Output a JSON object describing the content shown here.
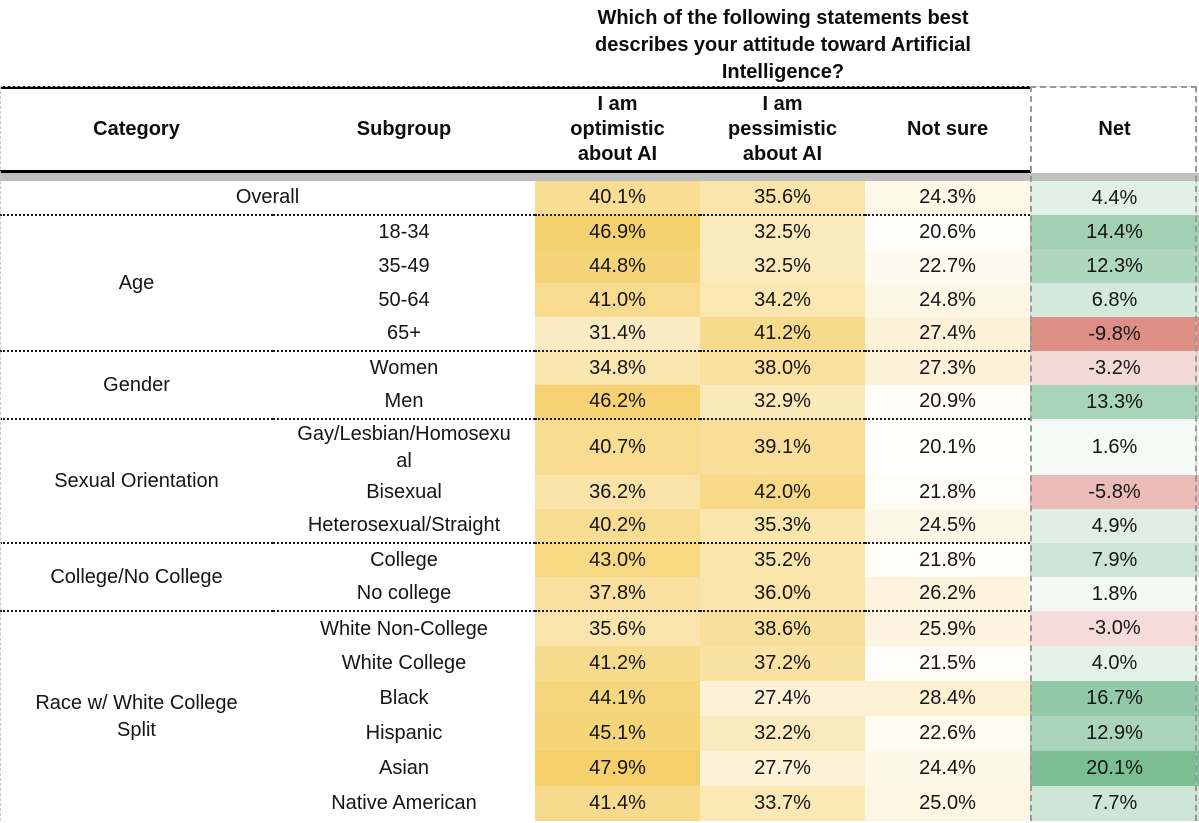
{
  "title": "Which of the following statements best\ndescribes your attitude toward Artificial\nIntelligence?",
  "columns": [
    {
      "label": "Category"
    },
    {
      "label": "Subgroup"
    },
    {
      "label": "I am\noptimistic\nabout AI"
    },
    {
      "label": "I am\npessimistic\nabout AI"
    },
    {
      "label": "Not sure"
    },
    {
      "label": "Net"
    }
  ],
  "colors": {
    "value_low": "#FFFFFF",
    "value_high": "#F5CF68",
    "net_positive": "#7CBE94",
    "net_negative": "#DD8E85",
    "gray_bar": "#BFBFBF",
    "dotted_divider": "#1a1a1a",
    "net_outline": "#9A9A9A",
    "outer_outline": "#C8C8C8",
    "text": "#151515"
  },
  "chart_data": {
    "type": "table",
    "title": "Which of the following statements best describes your attitude toward Artificial Intelligence?",
    "columns": [
      "Category",
      "Subgroup",
      "I am optimistic about AI",
      "I am pessimistic about AI",
      "Not sure",
      "Net"
    ],
    "value_scale": {
      "min": 20,
      "max": 48
    },
    "net_scale": {
      "min": -9.8,
      "max": 20.1
    },
    "groups": [
      {
        "category": "",
        "merged": true,
        "rows": [
          {
            "subgroup": "Overall",
            "optimistic": 40.1,
            "pessimistic": 35.6,
            "not_sure": 24.3,
            "net": 4.4
          }
        ]
      },
      {
        "category": "Age",
        "rows": [
          {
            "subgroup": "18-34",
            "optimistic": 46.9,
            "pessimistic": 32.5,
            "not_sure": 20.6,
            "net": 14.4
          },
          {
            "subgroup": "35-49",
            "optimistic": 44.8,
            "pessimistic": 32.5,
            "not_sure": 22.7,
            "net": 12.3
          },
          {
            "subgroup": "50-64",
            "optimistic": 41.0,
            "pessimistic": 34.2,
            "not_sure": 24.8,
            "net": 6.8
          },
          {
            "subgroup": "65+",
            "optimistic": 31.4,
            "pessimistic": 41.2,
            "not_sure": 27.4,
            "net": -9.8
          }
        ]
      },
      {
        "category": "Gender",
        "rows": [
          {
            "subgroup": "Women",
            "optimistic": 34.8,
            "pessimistic": 38.0,
            "not_sure": 27.3,
            "net": -3.2
          },
          {
            "subgroup": "Men",
            "optimistic": 46.2,
            "pessimistic": 32.9,
            "not_sure": 20.9,
            "net": 13.3
          }
        ]
      },
      {
        "category": "Sexual Orientation",
        "rows": [
          {
            "subgroup": "Gay/Lesbian/Homosexual",
            "subgroup_display": "Gay/Lesbian/Homosexu\nal",
            "optimistic": 40.7,
            "pessimistic": 39.1,
            "not_sure": 20.1,
            "net": 1.6
          },
          {
            "subgroup": "Bisexual",
            "optimistic": 36.2,
            "pessimistic": 42.0,
            "not_sure": 21.8,
            "net": -5.8
          },
          {
            "subgroup": "Heterosexual/Straight",
            "optimistic": 40.2,
            "pessimistic": 35.3,
            "not_sure": 24.5,
            "net": 4.9
          }
        ]
      },
      {
        "category": "College/No College",
        "rows": [
          {
            "subgroup": "College",
            "optimistic": 43.0,
            "pessimistic": 35.2,
            "not_sure": 21.8,
            "net": 7.9
          },
          {
            "subgroup": "No college",
            "optimistic": 37.8,
            "pessimistic": 36.0,
            "not_sure": 26.2,
            "net": 1.8
          }
        ]
      },
      {
        "category": "Race w/ White College Split",
        "category_display": "Race w/ White College\nSplit",
        "rows": [
          {
            "subgroup": "White Non-College",
            "optimistic": 35.6,
            "pessimistic": 38.6,
            "not_sure": 25.9,
            "net": -3.0
          },
          {
            "subgroup": "White College",
            "optimistic": 41.2,
            "pessimistic": 37.2,
            "not_sure": 21.5,
            "net": 4.0
          },
          {
            "subgroup": "Black",
            "optimistic": 44.1,
            "pessimistic": 27.4,
            "not_sure": 28.4,
            "net": 16.7
          },
          {
            "subgroup": "Hispanic",
            "optimistic": 45.1,
            "pessimistic": 32.2,
            "not_sure": 22.6,
            "net": 12.9
          },
          {
            "subgroup": "Asian",
            "optimistic": 47.9,
            "pessimistic": 27.7,
            "not_sure": 24.4,
            "net": 20.1
          },
          {
            "subgroup": "Native American",
            "optimistic": 41.4,
            "pessimistic": 33.7,
            "not_sure": 25.0,
            "net": 7.7
          }
        ]
      }
    ]
  }
}
